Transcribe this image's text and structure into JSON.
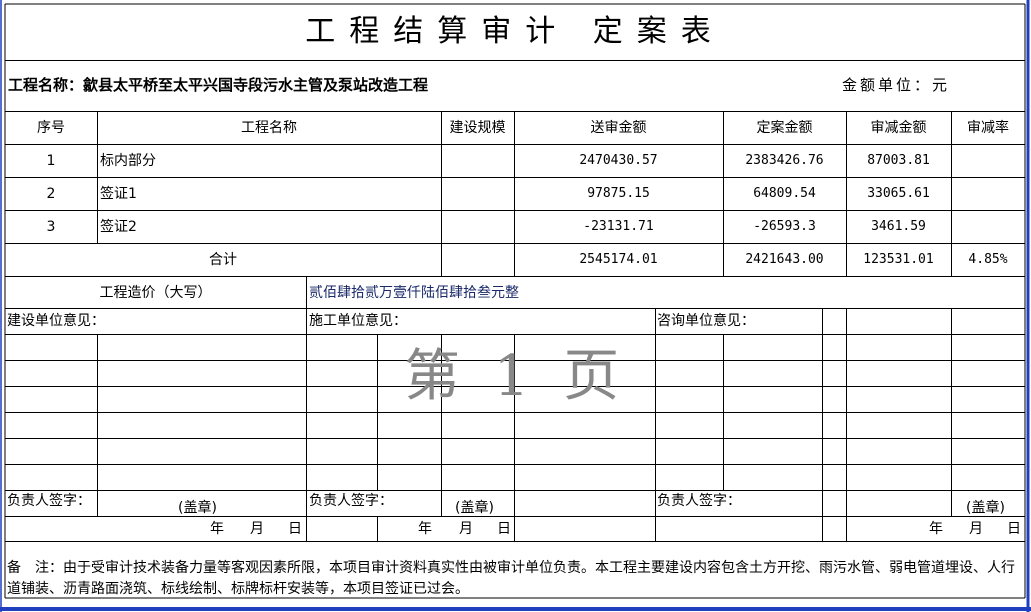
{
  "title": "工程结算审计 定案表",
  "project_label": "工程名称：歙县太平桥至太平兴国寺段污水主管及泵站改造工程",
  "unit_label": "金额单位：元",
  "headers": [
    "序号",
    "工程名称",
    "建设规模",
    "送审金额",
    "定案金额",
    "审减金额",
    "审减率"
  ],
  "rows": [
    {
      "no": "1",
      "name": "标内部分",
      "scale": "",
      "submitted": "2470430.57",
      "approved": "2383426.76",
      "reduced": "87003.81",
      "rate": ""
    },
    {
      "no": "2",
      "name": "签证1",
      "scale": "",
      "submitted": "97875.15",
      "approved": "64809.54",
      "reduced": "33065.61",
      "rate": ""
    },
    {
      "no": "3",
      "name": "签证2",
      "scale": "",
      "submitted": "-23131.71",
      "approved": "-26593.3",
      "reduced": "3461.59",
      "rate": ""
    }
  ],
  "total": {
    "label": "合计",
    "submitted": "2545174.01",
    "approved": "2421643.00",
    "reduced": "123531.01",
    "rate": "4.85%"
  },
  "cost_words": {
    "label": "工程造价（大写）",
    "value": "贰佰肆拾贰万壹仟陆佰肆拾叁元整"
  },
  "opinions": {
    "construction_unit": "建设单位意见：",
    "builder_unit": "施工单位意见：",
    "consulting_unit": "咨询单位意见："
  },
  "signature": {
    "sign_label": "负责人签字：",
    "seal_label": "(盖章)",
    "year": "年",
    "month": "月",
    "day": "日"
  },
  "note": "备　注：由于受审计技术装备力量等客观因素所限，本项目审计资料真实性由被审计单位负责。本工程主要建设内容包含土方开挖、雨污水管、弱电管道埋设、人行道铺装、沥青路面浇筑、标线绘制、标牌标杆安装等，本项目签证已过会。",
  "watermark": "第 1 页",
  "colors": {
    "frame_blue": "#1f3fbf",
    "grid": "#000000",
    "watermark": "#888888"
  }
}
